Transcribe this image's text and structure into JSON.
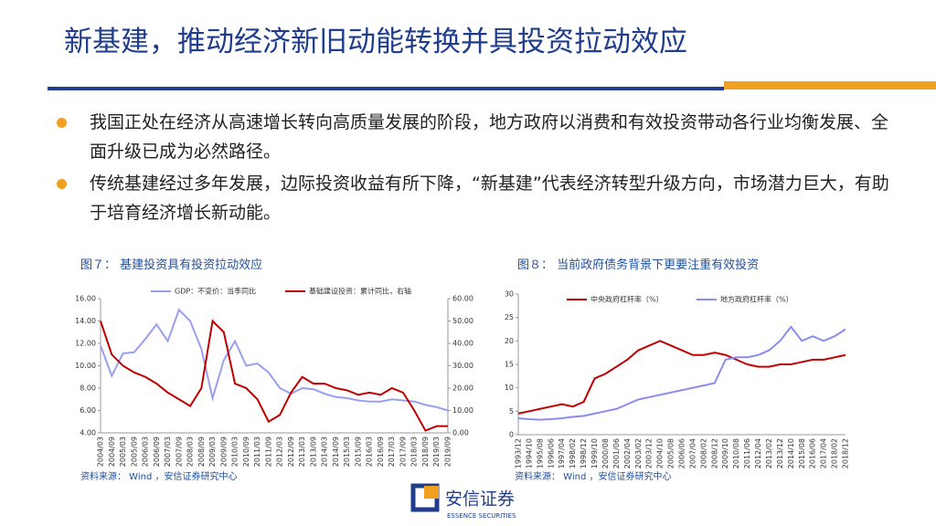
{
  "header": {
    "title": "新基建，推动经济新旧动能转换并具投资拉动效应"
  },
  "bullets": [
    "我国正处在经济从高速增长转向高质量发展的阶段，地方政府以消费和有效投资带动各行业均衡发展、全面升级已成为必然路径。",
    "传统基建经过多年发展，边际投资收益有所下降，“新基建”代表经济转型升级方向，市场潜力巨大，有助于培育经济增长新动能。"
  ],
  "chart_data": [
    {
      "type": "line",
      "title": "图７：  基建投资具有投资拉动效应",
      "source": "资料来源：  Wind ，安信证券研究中心",
      "categories": [
        "2004/03",
        "2004/09",
        "2005/03",
        "2005/09",
        "2006/03",
        "2006/09",
        "2007/03",
        "2007/09",
        "2008/03",
        "2008/09",
        "2009/03",
        "2009/09",
        "2010/03",
        "2010/09",
        "2011/03",
        "2011/09",
        "2012/03",
        "2012/09",
        "2013/03",
        "2013/09",
        "2014/03",
        "2014/09",
        "2015/03",
        "2015/09",
        "2016/03",
        "2016/09",
        "2017/03",
        "2017/09",
        "2018/03",
        "2018/09",
        "2019/03",
        "2019/09"
      ],
      "series": [
        {
          "name": "GDP：不变价：当季同比",
          "color": "#9a9ef0",
          "values": [
            11.8,
            9.1,
            11.1,
            11.2,
            12.4,
            13.7,
            12.2,
            15.0,
            14.0,
            11.5,
            7.1,
            10.5,
            12.2,
            10.0,
            10.2,
            9.4,
            8.0,
            7.5,
            8.0,
            7.9,
            7.5,
            7.2,
            7.1,
            6.9,
            6.8,
            6.8,
            7.0,
            6.9,
            6.8,
            6.5,
            6.3,
            6.0
          ]
        },
        {
          "name": "基础建设投资：累计同比，右轴",
          "color": "#c00000",
          "axis": "y2",
          "values": [
            50,
            35,
            30,
            27,
            25,
            22,
            18,
            15,
            12,
            20,
            50,
            45,
            22,
            20,
            15,
            5,
            8,
            18,
            25,
            22,
            22,
            20,
            19,
            17,
            18,
            17,
            20,
            18,
            10,
            1,
            3,
            3
          ]
        }
      ],
      "ylim": [
        4,
        16
      ],
      "yticks": [
        {
          "value": 4,
          "label": "4.00"
        },
        {
          "value": 6,
          "label": "6.00"
        },
        {
          "value": 8,
          "label": "8.00"
        },
        {
          "value": 10,
          "label": "10.00"
        },
        {
          "value": 12,
          "label": "12.00"
        },
        {
          "value": 14,
          "label": "14.00"
        },
        {
          "value": 16,
          "label": "16.00"
        }
      ],
      "y2lim": [
        0,
        60
      ],
      "y2ticks": [
        {
          "value": 0,
          "label": "0.00"
        },
        {
          "value": 10,
          "label": "10.00"
        },
        {
          "value": 20,
          "label": "20.00"
        },
        {
          "value": 30,
          "label": "30.00"
        },
        {
          "value": 40,
          "label": "40.00"
        },
        {
          "value": 50,
          "label": "50.00"
        },
        {
          "value": 60,
          "label": "60.00"
        }
      ]
    },
    {
      "type": "line",
      "title": "图８：  当前政府债务背景下更要注重有效投资",
      "source": "资料来源：  Wind ，安信证券研究中心",
      "categories": [
        "1993/12",
        "1994/10",
        "1995/08",
        "1996/06",
        "1997/04",
        "1998/02",
        "1998/12",
        "1999/10",
        "2000/08",
        "2001/06",
        "2002/04",
        "2003/02",
        "2003/12",
        "2004/10",
        "2005/08",
        "2006/06",
        "2007/04",
        "2008/02",
        "2008/12",
        "2009/10",
        "2010/08",
        "2011/06",
        "2012/04",
        "2013/02",
        "2013/12",
        "2014/10",
        "2015/08",
        "2016/06",
        "2017/04",
        "2018/02",
        "2018/12"
      ],
      "series": [
        {
          "name": "中央政府杠杆率（%）",
          "color": "#c00000",
          "values": [
            4.5,
            5,
            5.5,
            6,
            6.5,
            6,
            7,
            12,
            13,
            14.5,
            16,
            18,
            19,
            20,
            19,
            18,
            17,
            17,
            17.5,
            17,
            16,
            15,
            14.5,
            14.5,
            15,
            15,
            15.5,
            16,
            16,
            16.5,
            17
          ]
        },
        {
          "name": "地方政府杠杆率（%）",
          "color": "#8c8cf0",
          "values": [
            3.5,
            3.3,
            3.2,
            3.3,
            3.5,
            3.8,
            4,
            4.5,
            5,
            5.5,
            6.5,
            7.5,
            8,
            8.5,
            9,
            9.5,
            10,
            10.5,
            11,
            16,
            16.5,
            16.5,
            17,
            18,
            20,
            23,
            20,
            21,
            20,
            21,
            22.5
          ]
        }
      ],
      "ylim": [
        0,
        30
      ],
      "yticks": [
        0,
        5,
        10,
        15,
        20,
        25,
        30
      ]
    }
  ],
  "footer": {
    "brand": "安信证券",
    "brand_en": "ESSENCE SECURITIES"
  }
}
